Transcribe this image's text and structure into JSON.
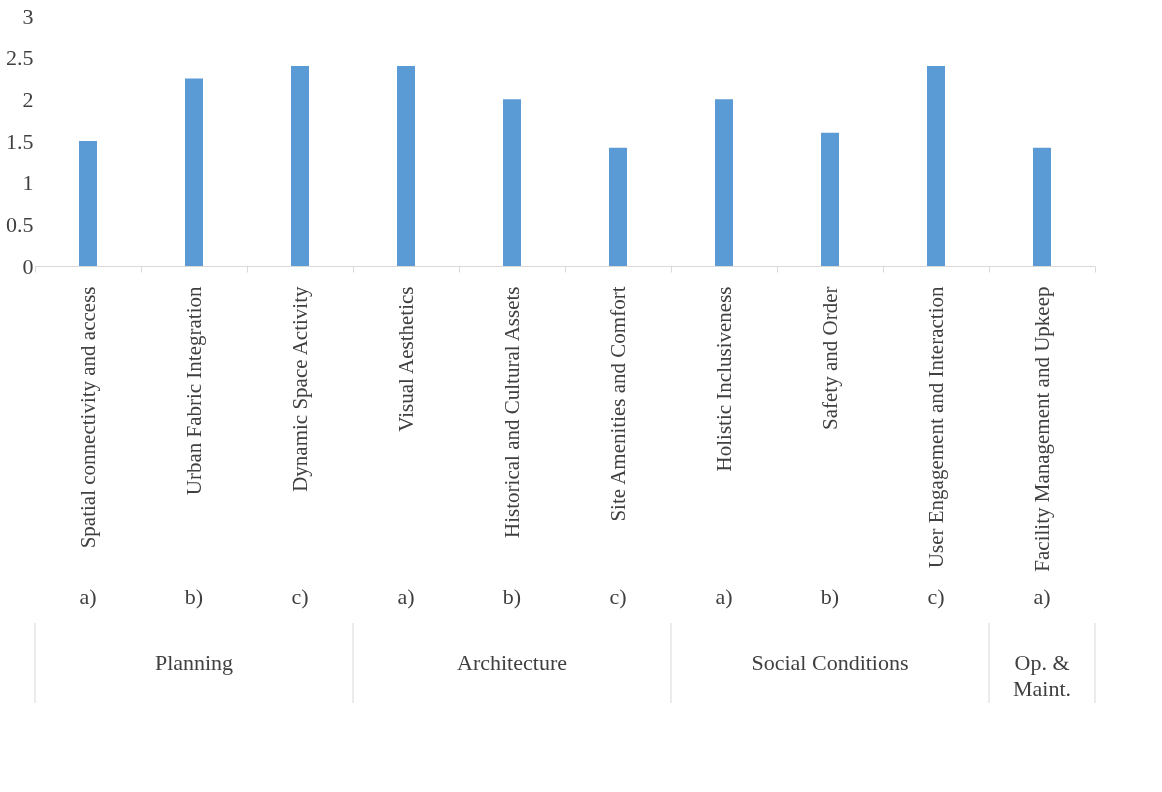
{
  "chart_data": {
    "type": "bar",
    "categories": [
      "Spatial connectivity and access",
      "Urban Fabric Integration",
      "Dynamic Space Activity",
      "Visual Aesthetics",
      "Historical and Cultural Assets",
      "Site Amenities and Comfort",
      "Holistic Inclusiveness",
      "Safety and Order",
      "User Engagement and Interaction",
      "Facility Management and Upkeep"
    ],
    "values": [
      1.5,
      2.25,
      2.4,
      2.4,
      2.0,
      1.42,
      2.0,
      1.6,
      2.4,
      1.42
    ],
    "color": "#5b9bd5",
    "ylim": [
      0,
      3
    ],
    "yticks": [
      0,
      0.5,
      1,
      1.5,
      2,
      2.5,
      3
    ],
    "annotations": [
      "a)",
      "b)",
      "c)",
      "a)",
      "b)",
      "c)",
      "a)",
      "b)",
      "c)",
      "a)",
      "Planning",
      "Architecture",
      "Social Conditions",
      "Op. & Maint."
    ],
    "grid": false
  }
}
